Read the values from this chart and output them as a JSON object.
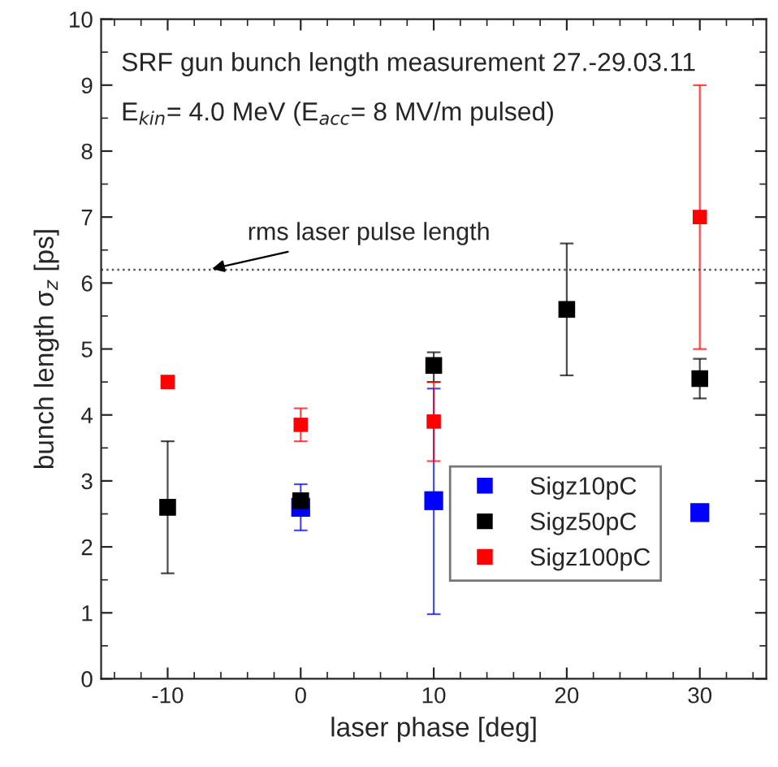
{
  "chart_data": {
    "type": "scatter",
    "xlabel": "laser phase [deg]",
    "ylabel": "bunch length σ$_{z}$ [ps]",
    "annotations": [
      "SRF gun bunch length measurement 27.-29.03.11",
      "E$_{kin}$= 4.0 MeV (E$_{acc}$= 8 MV/m pulsed)"
    ],
    "xlim": [
      -15,
      35
    ],
    "xticks": [
      -10,
      0,
      10,
      20,
      30
    ],
    "ylim": [
      0,
      10
    ],
    "yticks": [
      0,
      1,
      2,
      3,
      4,
      5,
      6,
      7,
      8,
      9,
      10
    ],
    "marker": "square",
    "legend": "bottom right",
    "grid": false,
    "ref_lines": [
      {
        "axis": "y",
        "value": 6.2,
        "label": "rms laser pulse length",
        "color": "#555555",
        "line_style": "dotted"
      }
    ],
    "series": [
      {
        "name": "Sigz10pC",
        "color": "#0000ff",
        "x": [
          0,
          10,
          30
        ],
        "values": [
          2.6,
          2.7,
          2.52
        ],
        "errors": [
          [
            2.25,
            2.95
          ],
          [
            0.98,
            4.4
          ],
          null
        ]
      },
      {
        "name": "Sigz50pC",
        "color": "#000000",
        "x": [
          -10,
          0,
          10,
          20,
          30
        ],
        "values": [
          2.6,
          2.7,
          4.75,
          5.6,
          4.55
        ],
        "errors": [
          [
            1.6,
            3.6
          ],
          null,
          [
            4.5,
            4.95
          ],
          [
            4.6,
            6.6
          ],
          [
            4.25,
            4.85
          ]
        ]
      },
      {
        "name": "Sigz100pC",
        "color": "#ff0000",
        "x": [
          -10,
          0,
          10,
          30
        ],
        "values": [
          4.5,
          3.85,
          3.9,
          7.0
        ],
        "errors": [
          null,
          [
            3.6,
            4.1
          ],
          [
            3.3,
            4.5
          ],
          [
            5.0,
            9.0
          ]
        ]
      }
    ]
  }
}
